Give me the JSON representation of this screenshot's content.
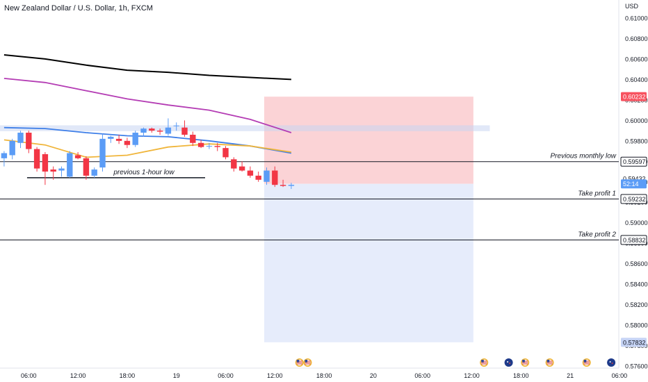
{
  "header": {
    "title": "New Zealand Dollar / U.S. Dollar, 1h, FXCM"
  },
  "colors": {
    "up": "#5b9cf6",
    "down": "#f23645",
    "ma_slow": "#000000",
    "ma_mid": "#b43cb4",
    "ma_blue": "#3d7ee8",
    "ma_orange": "#f0b53a",
    "stop_zone": "#fbd3d6",
    "target_zone": "#e6ecfb",
    "supply_band": "#c8d6f2"
  },
  "chart_data": {
    "type": "candlestick",
    "symbol": "NZDUSD",
    "currency": "USD",
    "ylim": [
      0.576,
      0.612
    ],
    "y_ticks": [
      "0.61000",
      "0.60800",
      "0.60600",
      "0.60400",
      "0.60200",
      "0.60000",
      "0.59800",
      "0.59600",
      "0.59400",
      "0.59200",
      "0.59000",
      "0.58800",
      "0.58600",
      "0.58400",
      "0.58200",
      "0.58000",
      "0.57800",
      "0.57600"
    ],
    "x_ticks": [
      {
        "label": "06:00",
        "bar": 3
      },
      {
        "label": "12:00",
        "bar": 9
      },
      {
        "label": "18:00",
        "bar": 15
      },
      {
        "label": "19",
        "bar": 21
      },
      {
        "label": "06:00",
        "bar": 27
      },
      {
        "label": "12:00",
        "bar": 33
      },
      {
        "label": "18:00",
        "bar": 39
      },
      {
        "label": "20",
        "bar": 45
      },
      {
        "label": "06:00",
        "bar": 51
      },
      {
        "label": "12:00",
        "bar": 57
      },
      {
        "label": "18:00",
        "bar": 63
      },
      {
        "label": "21",
        "bar": 69
      },
      {
        "label": "06:00",
        "bar": 75
      }
    ],
    "candles": [
      {
        "o": 0.5963,
        "h": 0.597,
        "l": 0.5955,
        "c": 0.5968
      },
      {
        "o": 0.5966,
        "h": 0.5982,
        "l": 0.5962,
        "c": 0.598
      },
      {
        "o": 0.5978,
        "h": 0.599,
        "l": 0.5973,
        "c": 0.5988
      },
      {
        "o": 0.5988,
        "h": 0.599,
        "l": 0.5968,
        "c": 0.5972
      },
      {
        "o": 0.5972,
        "h": 0.5974,
        "l": 0.595,
        "c": 0.5953
      },
      {
        "o": 0.5967,
        "h": 0.5969,
        "l": 0.5937,
        "c": 0.595
      },
      {
        "o": 0.5952,
        "h": 0.5955,
        "l": 0.5942,
        "c": 0.595
      },
      {
        "o": 0.5951,
        "h": 0.5955,
        "l": 0.5945,
        "c": 0.5953
      },
      {
        "o": 0.5945,
        "h": 0.597,
        "l": 0.5944,
        "c": 0.5968
      },
      {
        "o": 0.5966,
        "h": 0.5969,
        "l": 0.5962,
        "c": 0.5963
      },
      {
        "o": 0.5963,
        "h": 0.5965,
        "l": 0.5942,
        "c": 0.5946
      },
      {
        "o": 0.5946,
        "h": 0.5954,
        "l": 0.5944,
        "c": 0.5952
      },
      {
        "o": 0.5954,
        "h": 0.5987,
        "l": 0.595,
        "c": 0.5982
      },
      {
        "o": 0.5982,
        "h": 0.5985,
        "l": 0.5978,
        "c": 0.5984
      },
      {
        "o": 0.5982,
        "h": 0.5986,
        "l": 0.5977,
        "c": 0.598
      },
      {
        "o": 0.598,
        "h": 0.5983,
        "l": 0.5973,
        "c": 0.5976
      },
      {
        "o": 0.5976,
        "h": 0.599,
        "l": 0.5974,
        "c": 0.5988
      },
      {
        "o": 0.5988,
        "h": 0.5993,
        "l": 0.5984,
        "c": 0.5992
      },
      {
        "o": 0.5992,
        "h": 0.5993,
        "l": 0.5988,
        "c": 0.599
      },
      {
        "o": 0.599,
        "h": 0.5992,
        "l": 0.5986,
        "c": 0.5989
      },
      {
        "o": 0.5987,
        "h": 0.6002,
        "l": 0.5985,
        "c": 0.5993
      },
      {
        "o": 0.5995,
        "h": 0.5998,
        "l": 0.599,
        "c": 0.5995
      },
      {
        "o": 0.5993,
        "h": 0.6,
        "l": 0.5984,
        "c": 0.5986
      },
      {
        "o": 0.5986,
        "h": 0.5989,
        "l": 0.5975,
        "c": 0.5978
      },
      {
        "o": 0.5978,
        "h": 0.5981,
        "l": 0.5973,
        "c": 0.5974
      },
      {
        "o": 0.5975,
        "h": 0.5978,
        "l": 0.5972,
        "c": 0.5975
      },
      {
        "o": 0.5975,
        "h": 0.5978,
        "l": 0.597,
        "c": 0.5974
      },
      {
        "o": 0.5973,
        "h": 0.5975,
        "l": 0.5962,
        "c": 0.5964
      },
      {
        "o": 0.5962,
        "h": 0.5964,
        "l": 0.595,
        "c": 0.5953
      },
      {
        "o": 0.5955,
        "h": 0.596,
        "l": 0.595,
        "c": 0.5951
      },
      {
        "o": 0.5951,
        "h": 0.5955,
        "l": 0.5944,
        "c": 0.5946
      },
      {
        "o": 0.5946,
        "h": 0.595,
        "l": 0.594,
        "c": 0.5942
      },
      {
        "o": 0.594,
        "h": 0.5954,
        "l": 0.5937,
        "c": 0.5951
      },
      {
        "o": 0.5951,
        "h": 0.5955,
        "l": 0.5935,
        "c": 0.5937
      },
      {
        "o": 0.5937,
        "h": 0.5942,
        "l": 0.5935,
        "c": 0.5936
      },
      {
        "o": 0.5936,
        "h": 0.5939,
        "l": 0.5933,
        "c": 0.5937
      }
    ],
    "moving_averages": [
      {
        "color_key": "ma_slow",
        "points": [
          [
            0,
            0.6064
          ],
          [
            5,
            0.606
          ],
          [
            10,
            0.6054
          ],
          [
            15,
            0.6049
          ],
          [
            20,
            0.6047
          ],
          [
            25,
            0.6044
          ],
          [
            30,
            0.6042
          ],
          [
            35,
            0.604
          ]
        ]
      },
      {
        "color_key": "ma_mid",
        "points": [
          [
            0,
            0.6041
          ],
          [
            5,
            0.6037
          ],
          [
            10,
            0.6029
          ],
          [
            15,
            0.6021
          ],
          [
            20,
            0.6015
          ],
          [
            25,
            0.601
          ],
          [
            30,
            0.6001
          ],
          [
            35,
            0.5988
          ]
        ]
      },
      {
        "color_key": "ma_blue",
        "points": [
          [
            0,
            0.5993
          ],
          [
            5,
            0.5992
          ],
          [
            10,
            0.5988
          ],
          [
            15,
            0.5985
          ],
          [
            20,
            0.5984
          ],
          [
            25,
            0.598
          ],
          [
            30,
            0.5975
          ],
          [
            35,
            0.5968
          ]
        ]
      },
      {
        "color_key": "ma_orange",
        "points": [
          [
            0,
            0.5981
          ],
          [
            5,
            0.5976
          ],
          [
            10,
            0.5964
          ],
          [
            15,
            0.5966
          ],
          [
            20,
            0.5974
          ],
          [
            25,
            0.5977
          ],
          [
            30,
            0.5975
          ],
          [
            35,
            0.5969
          ]
        ]
      }
    ],
    "zones": [
      {
        "color_key": "stop_zone",
        "x0": 32.2,
        "x1": 57.7,
        "y0": 0.60232,
        "y1": 0.5938
      },
      {
        "color_key": "target_zone",
        "x0": 32.2,
        "x1": 57.7,
        "y0": 0.5938,
        "y1": 0.57832
      },
      {
        "color_key": "supply_band",
        "x0": -1.0,
        "x1": 59.7,
        "y0": 0.59952,
        "y1": 0.59895
      }
    ],
    "levels": [
      {
        "label": "Previous monthly low",
        "value": 0.59597,
        "price": "0.59597",
        "x0": -1.0
      },
      {
        "label": "Take profit 1",
        "value": 0.59232,
        "price": "0.59232",
        "x0": -1.0
      },
      {
        "label": "Take profit 2",
        "value": 0.58832,
        "price": "0.58832",
        "x0": -1.0
      },
      {
        "label": "previous 1-hour low",
        "value": 0.5944,
        "x0": 3.3,
        "x1": 25.0
      }
    ],
    "price_tags": [
      {
        "price": "0.60232",
        "value": 0.60232,
        "style": "red"
      },
      {
        "price": "0.59432",
        "value": 0.59432,
        "style": "plain"
      },
      {
        "price": "52:14",
        "value": 0.5938,
        "style": "blue"
      },
      {
        "price": "0.57832",
        "value": 0.57832,
        "style": "light"
      }
    ],
    "events": [
      {
        "bar": 36,
        "icon": "us-flag-icon"
      },
      {
        "bar": 37,
        "icon": "us-flag-icon"
      },
      {
        "bar": 58.5,
        "icon": "us-flag-icon"
      },
      {
        "bar": 61.5,
        "icon": "nz-flag-icon"
      },
      {
        "bar": 63.5,
        "icon": "us-flag-icon"
      },
      {
        "bar": 66.5,
        "icon": "us-flag-icon"
      },
      {
        "bar": 71,
        "icon": "us-flag-icon"
      },
      {
        "bar": 74,
        "icon": "nz-flag-icon"
      }
    ]
  }
}
